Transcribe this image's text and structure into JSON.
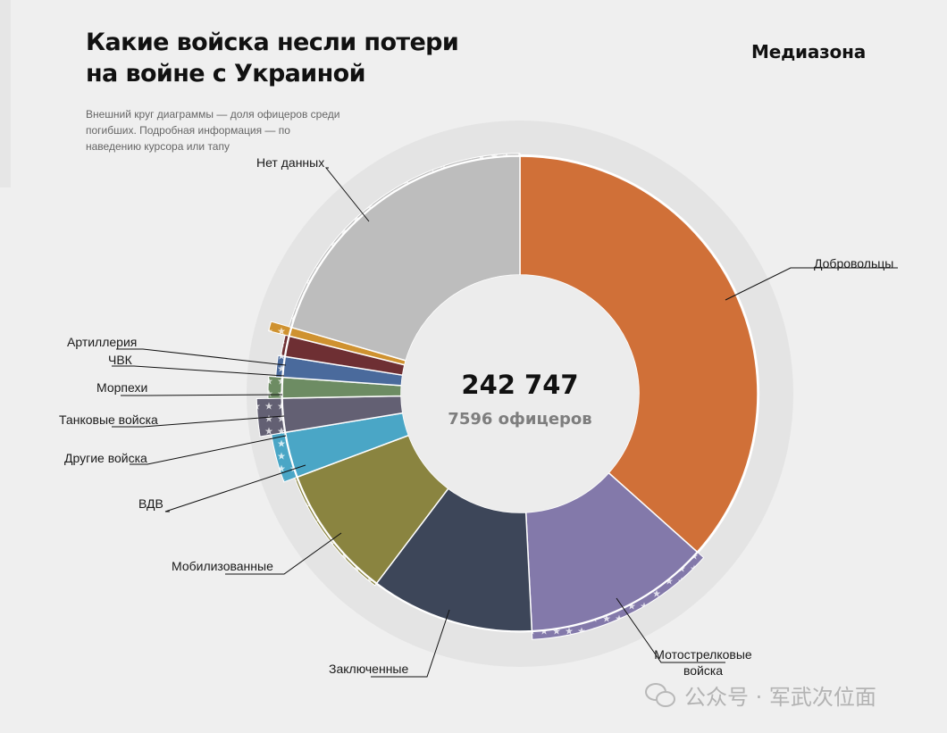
{
  "header": {
    "title_line1": "Какие войска несли потери",
    "title_line2": "на войне с Украиной",
    "brand": "Медиазона",
    "note": "Внешний круг диаграммы — доля офицеров среди погибших. Подробная информация — по наведению курсора или тапу"
  },
  "center": {
    "total": "242 747",
    "officers": "7596 офицеров"
  },
  "watermark": "公众号 · 军武次位面",
  "colors": {
    "background": "#efefef",
    "outer_ring": "#e4e4e4",
    "hole": "#ececec"
  },
  "chart_data": {
    "type": "donut",
    "total": 242747,
    "officers_total": 7596,
    "series": [
      {
        "name": "Добровольцы",
        "share_percent": 36.6,
        "officer_share_percent": 1.0,
        "color": "#d07038"
      },
      {
        "name": "Мотострелковые войска",
        "share_percent": 12.6,
        "officer_share_percent": 6.0,
        "color": "#8379aa"
      },
      {
        "name": "Заключенные",
        "share_percent": 11.1,
        "officer_share_percent": 0.5,
        "color": "#3d4659"
      },
      {
        "name": "Мобилизованные",
        "share_percent": 9.0,
        "officer_share_percent": 2.0,
        "color": "#8a8440"
      },
      {
        "name": "ВДВ",
        "share_percent": 3.1,
        "officer_share_percent": 10.0,
        "color": "#4aa6c6"
      },
      {
        "name": "Другие войска",
        "share_percent": 2.3,
        "officer_share_percent": 18.0,
        "color": "#636073"
      },
      {
        "name": "Танковые войска",
        "share_percent": 1.4,
        "officer_share_percent": 10.0,
        "color": "#6d8c63"
      },
      {
        "name": "Морпехи",
        "share_percent": 1.4,
        "officer_share_percent": 5.0,
        "color": "#4a6a9c"
      },
      {
        "name": "ЧВК",
        "share_percent": 1.4,
        "officer_share_percent": 3.0,
        "color": "#6e2f33"
      },
      {
        "name": "Артиллерия",
        "share_percent": 0.6,
        "officer_share_percent": 15.0,
        "color": "#cf9230"
      },
      {
        "name": "Нет данных",
        "share_percent": 20.5,
        "officer_share_percent": 2.0,
        "color": "#bdbdbd"
      }
    ]
  }
}
